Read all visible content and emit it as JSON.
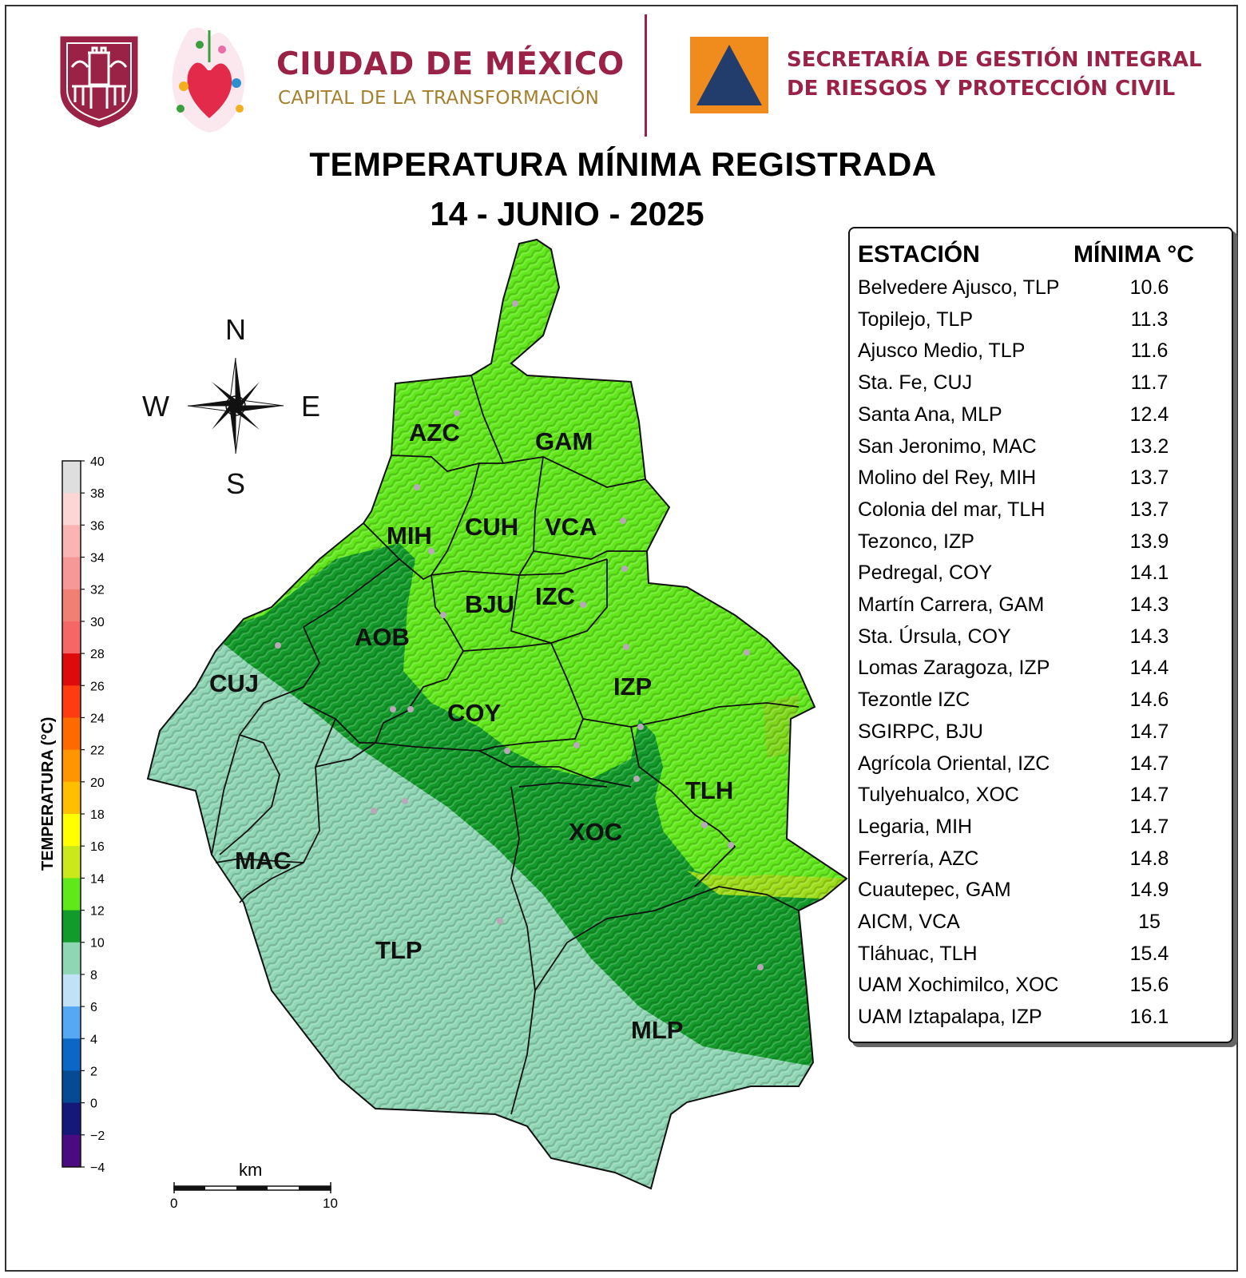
{
  "header": {
    "cdmx_title": "CIUDAD DE MÉXICO",
    "cdmx_subtitle": "CAPITAL DE LA TRANSFORMACIÓN",
    "agency_line1": "SECRETARÍA DE GESTIÓN INTEGRAL",
    "agency_line2": "DE RIESGOS Y PROTECCIÓN CIVIL",
    "colors": {
      "brand": "#9b2247",
      "gold": "#a57f2c",
      "pc_orange": "#f08b1d",
      "pc_blue": "#223d6c"
    }
  },
  "map": {
    "title": "TEMPERATURA MÍNIMA REGISTRADA",
    "date": "14 - JUNIO - 2025",
    "compass": {
      "n": "N",
      "s": "S",
      "e": "E",
      "w": "W"
    },
    "municipalities": [
      "AZC",
      "GAM",
      "MIH",
      "CUH",
      "VCA",
      "BJU",
      "IZC",
      "AOB",
      "CUJ",
      "COY",
      "IZP",
      "TLH",
      "XOC",
      "MAC",
      "TLP",
      "MLP"
    ],
    "scale": {
      "unit": "km",
      "start": "0",
      "end": "10"
    }
  },
  "colorbar": {
    "label": "TEMPERATURA (°C)",
    "ticks": [
      "40",
      "38",
      "36",
      "34",
      "32",
      "30",
      "28",
      "26",
      "24",
      "22",
      "20",
      "18",
      "16",
      "14",
      "12",
      "10",
      "8",
      "6",
      "4",
      "2",
      "0",
      "−2",
      "−4"
    ],
    "colors_top_to_bottom": [
      "#dedede",
      "#fcd5d5",
      "#fbb4b4",
      "#f79898",
      "#f18074",
      "#f46766",
      "#dd0b0b",
      "#ff3b11",
      "#ff6a00",
      "#ff9500",
      "#ffbf00",
      "#ffff00",
      "#cbe81a",
      "#61e81a",
      "#129a2a",
      "#8fd6b4",
      "#c1e1f7",
      "#56a8f5",
      "#0c66c5",
      "#054a92",
      "#151779",
      "#4a0b80",
      "#c56ae9"
    ]
  },
  "table": {
    "header_station": "ESTACIÓN",
    "header_min": "MÍNIMA °C",
    "rows": [
      {
        "station": "Belvedere Ajusco, TLP",
        "min": "10.6"
      },
      {
        "station": "Topilejo, TLP",
        "min": "11.3"
      },
      {
        "station": "Ajusco Medio, TLP",
        "min": "11.6"
      },
      {
        "station": "Sta. Fe, CUJ",
        "min": "11.7"
      },
      {
        "station": "Santa Ana, MLP",
        "min": "12.4"
      },
      {
        "station": "San Jeronimo, MAC",
        "min": "13.2"
      },
      {
        "station": "Molino del Rey, MIH",
        "min": "13.7"
      },
      {
        "station": "Colonia del mar, TLH",
        "min": "13.7"
      },
      {
        "station": "Tezonco, IZP",
        "min": "13.9"
      },
      {
        "station": "Pedregal, COY",
        "min": "14.1"
      },
      {
        "station": "Martín Carrera, GAM",
        "min": "14.3"
      },
      {
        "station": "Sta. Úrsula, COY",
        "min": "14.3"
      },
      {
        "station": "Lomas Zaragoza, IZP",
        "min": "14.4"
      },
      {
        "station": "Tezontle IZC",
        "min": "14.6"
      },
      {
        "station": "SGIRPC, BJU",
        "min": "14.7"
      },
      {
        "station": "Agrícola Oriental, IZC",
        "min": "14.7"
      },
      {
        "station": "Tulyehualco, XOC",
        "min": "14.7"
      },
      {
        "station": "Legaria, MIH",
        "min": "14.7"
      },
      {
        "station": "Ferrería, AZC",
        "min": "14.8"
      },
      {
        "station": "Cuautepec, GAM",
        "min": "14.9"
      },
      {
        "station": "AICM, VCA",
        "min": "15"
      },
      {
        "station": "Tláhuac, TLH",
        "min": "15.4"
      },
      {
        "station": "UAM Xochimilco, XOC",
        "min": "15.6"
      },
      {
        "station": "UAM Iztapalapa, IZP",
        "min": "16.1"
      }
    ]
  }
}
